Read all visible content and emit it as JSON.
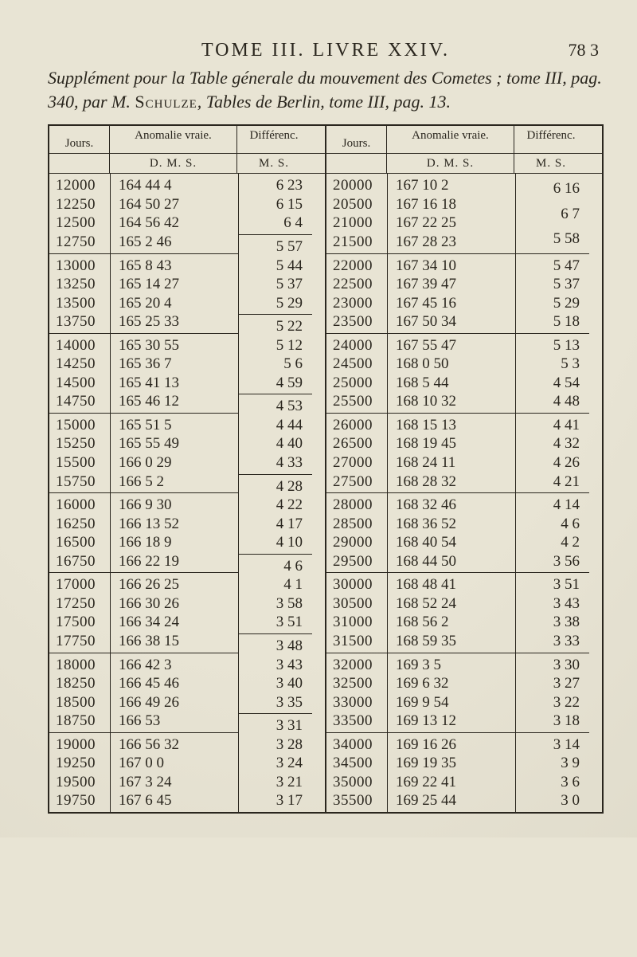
{
  "page": {
    "running_head": "TOME III. LIVRE XXIV.",
    "page_number": "78 3",
    "caption_before": "Supplément pour la Table génerale du mouvement des Cometes ; tome III, pag. 340, par M. ",
    "caption_sc": "Schulze",
    "caption_after": ", Tables de Berlin, tome III, pag. 13."
  },
  "colors": {
    "paper": "#e8e4d4",
    "ink": "#2a261e"
  },
  "table": {
    "headers": {
      "jours": "Jours.",
      "anom": "Anomalie vraie.",
      "diff": "Différenc.",
      "dms": "D. M. S.",
      "ms": "M. S."
    },
    "blocks": [
      {
        "left": {
          "jours": [
            "12000",
            "12250",
            "12500",
            "12750"
          ],
          "anom": [
            "164 44  4",
            "164 50 27",
            "164 56 42",
            "165  2 46"
          ],
          "diff": [
            "6 23",
            "6 15",
            "6  4"
          ]
        },
        "right": {
          "jours": [
            "20000",
            "20500",
            "21000",
            "21500"
          ],
          "anom": [
            "167 10  2",
            "167 16 18",
            "167 22 25",
            "167 28 23"
          ],
          "diff": [
            "6 16",
            "6  7",
            "5 58"
          ]
        }
      },
      {
        "left": {
          "jours": [
            "13000",
            "13250",
            "13500",
            "13750"
          ],
          "anom": [
            "165  8 43",
            "165 14 27",
            "165 20  4",
            "165 25 33"
          ],
          "diff": [
            "5 57",
            "5 44",
            "5 37",
            "5 29"
          ]
        },
        "right": {
          "jours": [
            "22000",
            "22500",
            "23000",
            "23500"
          ],
          "anom": [
            "167 34 10",
            "167 39 47",
            "167 45 16",
            "167 50 34"
          ],
          "diff": [
            "5 47",
            "5 37",
            "5 29",
            "5 18"
          ]
        }
      },
      {
        "left": {
          "jours": [
            "14000",
            "14250",
            "14500",
            "14750"
          ],
          "anom": [
            "165 30 55",
            "165 36  7",
            "165 41 13",
            "165 46 12"
          ],
          "diff": [
            "5 22",
            "5 12",
            "5  6",
            "4 59"
          ]
        },
        "right": {
          "jours": [
            "24000",
            "24500",
            "25000",
            "25500"
          ],
          "anom": [
            "167 55 47",
            "168  0 50",
            "168  5 44",
            "168 10 32"
          ],
          "diff": [
            "5 13",
            "5  3",
            "4 54",
            "4 48"
          ]
        }
      },
      {
        "left": {
          "jours": [
            "15000",
            "15250",
            "15500",
            "15750"
          ],
          "anom": [
            "165 51  5",
            "165 55 49",
            "166  0 29",
            "166  5  2"
          ],
          "diff": [
            "4 53",
            "4 44",
            "4 40",
            "4 33"
          ]
        },
        "right": {
          "jours": [
            "26000",
            "26500",
            "27000",
            "27500"
          ],
          "anom": [
            "168 15 13",
            "168 19 45",
            "168 24 11",
            "168 28 32"
          ],
          "diff": [
            "4 41",
            "4 32",
            "4 26",
            "4 21"
          ]
        }
      },
      {
        "left": {
          "jours": [
            "16000",
            "16250",
            "16500",
            "16750"
          ],
          "anom": [
            "166  9 30",
            "166 13 52",
            "166 18  9",
            "166 22 19"
          ],
          "diff": [
            "4 28",
            "4 22",
            "4 17",
            "4 10"
          ]
        },
        "right": {
          "jours": [
            "28000",
            "28500",
            "29000",
            "29500"
          ],
          "anom": [
            "168 32 46",
            "168 36 52",
            "168 40 54",
            "168 44 50"
          ],
          "diff": [
            "4 14",
            "4  6",
            "4  2",
            "3 56"
          ]
        }
      },
      {
        "left": {
          "jours": [
            "17000",
            "17250",
            "17500",
            "17750"
          ],
          "anom": [
            "166 26 25",
            "166 30 26",
            "166 34 24",
            "166 38 15"
          ],
          "diff": [
            "4  6",
            "4  1",
            "3 58",
            "3 51"
          ]
        },
        "right": {
          "jours": [
            "30000",
            "30500",
            "31000",
            "31500"
          ],
          "anom": [
            "168 48 41",
            "168 52 24",
            "168 56  2",
            "168 59 35"
          ],
          "diff": [
            "3 51",
            "3 43",
            "3 38",
            "3 33"
          ]
        }
      },
      {
        "left": {
          "jours": [
            "18000",
            "18250",
            "18500",
            "18750"
          ],
          "anom": [
            "166 42  3",
            "166 45 46",
            "166 49 26",
            "166 53  "
          ],
          "diff": [
            "3 48",
            "3 43",
            "3 40",
            "3 35"
          ]
        },
        "right": {
          "jours": [
            "32000",
            "32500",
            "33000",
            "33500"
          ],
          "anom": [
            "169  3  5",
            "169  6 32",
            "169  9 54",
            "169 13 12"
          ],
          "diff": [
            "3 30",
            "3 27",
            "3 22",
            "3 18"
          ]
        }
      },
      {
        "left": {
          "jours": [
            "19000",
            "19250",
            "19500",
            "19750"
          ],
          "anom": [
            "166 56 32",
            "167  0  0",
            "167  3 24",
            "167  6 45"
          ],
          "diff": [
            "3 31",
            "3 28",
            "3 24",
            "3 21",
            "3 17"
          ]
        },
        "right": {
          "jours": [
            "34000",
            "34500",
            "35000",
            "35500"
          ],
          "anom": [
            "169 16 26",
            "169 19 35",
            "169 22 41",
            "169 25 44"
          ],
          "diff": [
            "3 14",
            "3  9",
            "3  6",
            "3  0"
          ]
        }
      }
    ]
  }
}
